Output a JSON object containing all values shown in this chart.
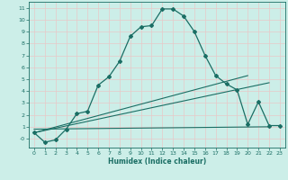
{
  "xlabel": "Humidex (Indice chaleur)",
  "bg_color": "#b8e8e0",
  "plot_bg_color": "#cceee8",
  "grid_color": "#e8c8c8",
  "line_color": "#1a6e64",
  "xlim": [
    -0.5,
    23.5
  ],
  "ylim": [
    -0.75,
    11.5
  ],
  "xticks": [
    0,
    1,
    2,
    3,
    4,
    5,
    6,
    7,
    8,
    9,
    10,
    11,
    12,
    13,
    14,
    15,
    16,
    17,
    18,
    19,
    20,
    21,
    22,
    23
  ],
  "yticks": [
    0,
    1,
    2,
    3,
    4,
    5,
    6,
    7,
    8,
    9,
    10,
    11
  ],
  "main_curve_x": [
    0,
    1,
    2,
    3,
    4,
    5,
    6,
    7,
    8,
    9,
    10,
    11,
    12,
    13,
    14,
    15,
    16,
    17,
    18,
    19,
    20,
    21,
    22,
    23
  ],
  "main_curve_y": [
    0.5,
    -0.3,
    -0.1,
    0.8,
    2.1,
    2.3,
    4.5,
    5.2,
    6.5,
    8.6,
    9.4,
    9.5,
    10.9,
    10.9,
    10.3,
    9.0,
    7.0,
    5.3,
    4.6,
    4.1,
    1.2,
    3.1,
    1.1,
    1.1
  ],
  "line1_x": [
    0,
    20
  ],
  "line1_y": [
    0.5,
    5.3
  ],
  "line2_x": [
    0,
    22
  ],
  "line2_y": [
    0.5,
    4.7
  ],
  "line3_x": [
    0,
    22
  ],
  "line3_y": [
    0.8,
    1.0
  ]
}
